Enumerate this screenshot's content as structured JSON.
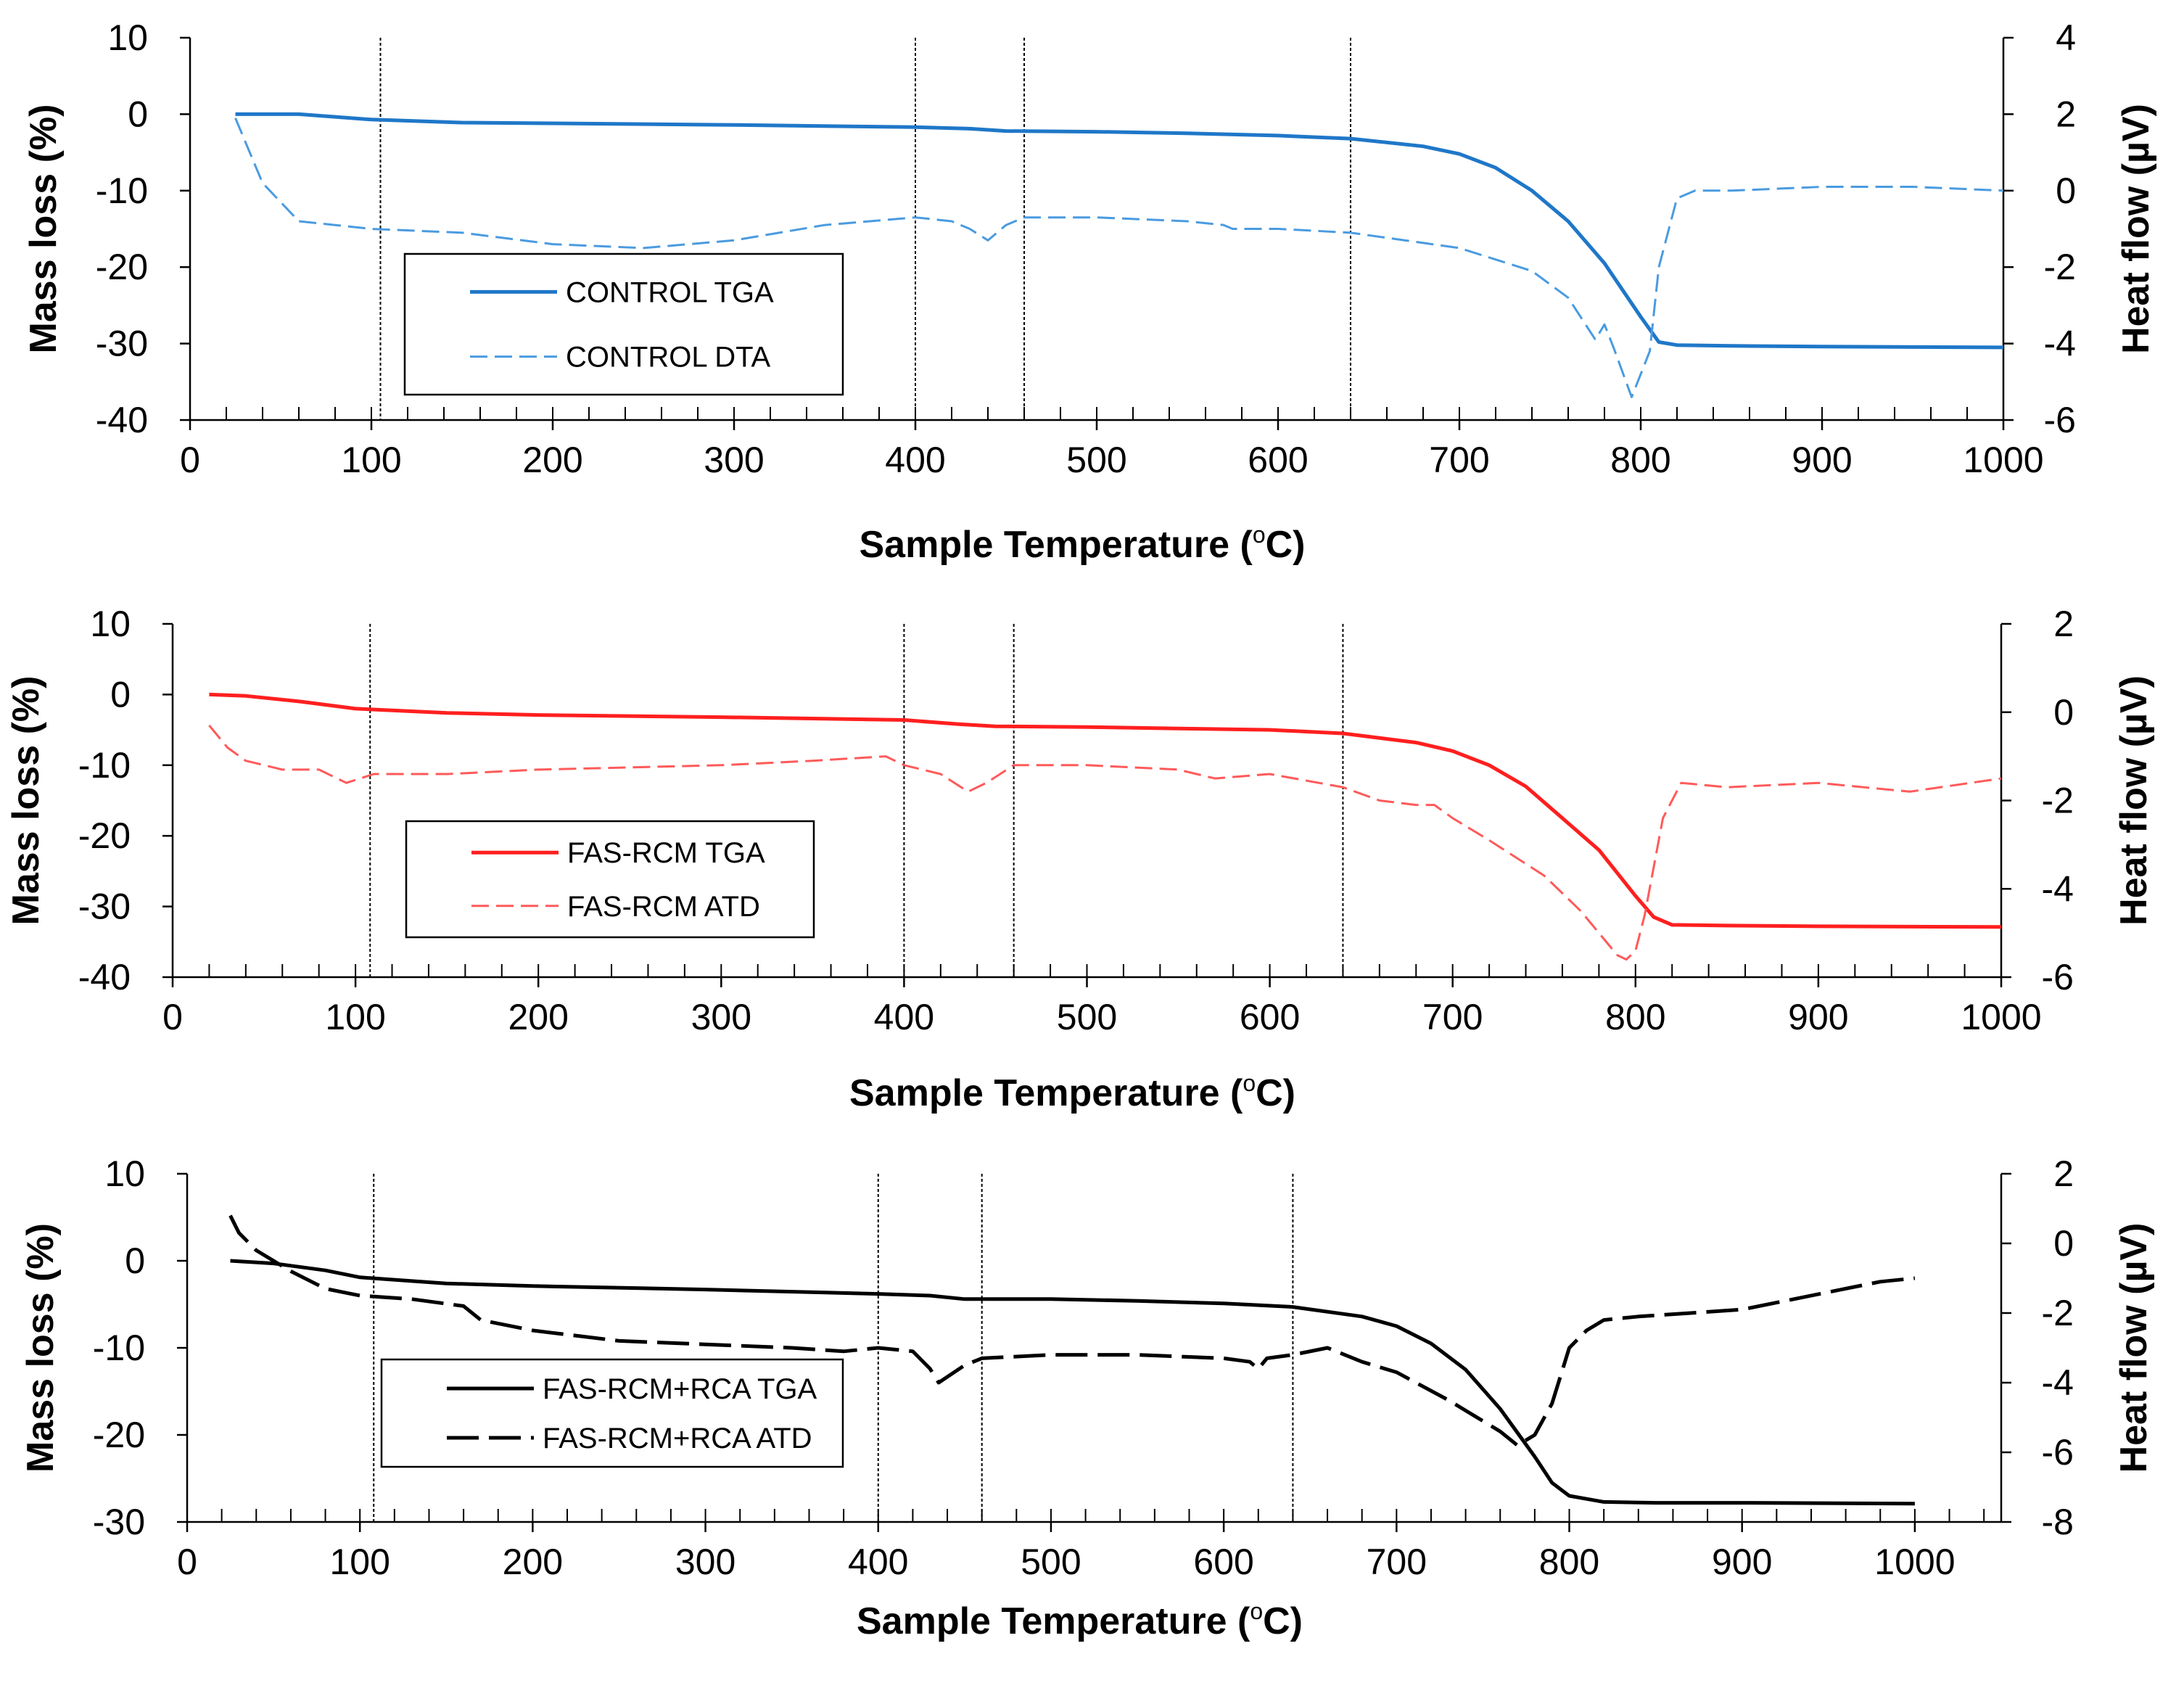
{
  "chart_data": [
    {
      "type": "line",
      "panel": "control",
      "xlabel": "Sample Temperature (",
      "xlabel_unit": "C)",
      "xlabel_sup": "o",
      "ylabel_left": "Mass loss (%)",
      "ylabel_right": "Heat flow (µV)",
      "xlim": [
        0,
        1000
      ],
      "ylim_left": [
        -40,
        10
      ],
      "ylim_right": [
        -6,
        4
      ],
      "x_ticks": [
        0,
        100,
        200,
        300,
        400,
        500,
        600,
        700,
        800,
        900,
        1000
      ],
      "y_ticks_left": [
        10,
        0,
        -10,
        -20,
        -30,
        -40
      ],
      "y_ticks_right": [
        4,
        2,
        0,
        -2,
        -4,
        -6
      ],
      "vlines": [
        105,
        400,
        460,
        640
      ],
      "series": [
        {
          "name": "CONTROL TGA",
          "axis": "left",
          "style": "solid",
          "color": "#1f77c8",
          "x": [
            25,
            60,
            100,
            150,
            200,
            300,
            400,
            430,
            450,
            500,
            550,
            600,
            640,
            680,
            700,
            720,
            740,
            760,
            780,
            800,
            810,
            820,
            850,
            900,
            1000
          ],
          "y": [
            0,
            0,
            -0.7,
            -1.1,
            -1.2,
            -1.4,
            -1.7,
            -1.9,
            -2.2,
            -2.3,
            -2.5,
            -2.8,
            -3.2,
            -4.2,
            -5.2,
            -7.0,
            -10.0,
            -14.0,
            -19.5,
            -26.5,
            -29.8,
            -30.2,
            -30.3,
            -30.4,
            -30.5
          ]
        },
        {
          "name": "CONTROL DTA",
          "axis": "right",
          "style": "dashed",
          "color": "#4a9be0",
          "x": [
            25,
            40,
            60,
            80,
            100,
            150,
            200,
            250,
            300,
            350,
            400,
            420,
            430,
            440,
            450,
            460,
            500,
            550,
            570,
            575,
            600,
            640,
            700,
            740,
            760,
            775,
            780,
            785,
            795,
            800,
            805,
            810,
            820,
            830,
            850,
            900,
            950,
            1000
          ],
          "y": [
            1.9,
            0.2,
            -0.8,
            -0.9,
            -1.0,
            -1.1,
            -1.4,
            -1.5,
            -1.3,
            -0.9,
            -0.7,
            -0.8,
            -1.0,
            -1.3,
            -0.9,
            -0.7,
            -0.7,
            -0.8,
            -0.9,
            -1.0,
            -1.0,
            -1.1,
            -1.5,
            -2.1,
            -2.8,
            -3.9,
            -3.5,
            -4.1,
            -5.4,
            -4.8,
            -4.2,
            -2.0,
            -0.2,
            0.0,
            0.0,
            0.1,
            0.1,
            0.0
          ]
        }
      ],
      "legend": [
        "CONTROL TGA",
        "CONTROL DTA"
      ]
    },
    {
      "type": "line",
      "panel": "fas-rcm",
      "xlabel": "Sample Temperature (",
      "xlabel_unit": "C)",
      "xlabel_sup": "o",
      "ylabel_left": "Mass loss (%)",
      "ylabel_right": "Heat flow (µV)",
      "xlim": [
        0,
        1000
      ],
      "ylim_left": [
        -40,
        10
      ],
      "ylim_right": [
        -6,
        2
      ],
      "x_ticks": [
        0,
        100,
        200,
        300,
        400,
        500,
        600,
        700,
        800,
        900,
        1000
      ],
      "y_ticks_left": [
        10,
        0,
        -10,
        -20,
        -30,
        -40
      ],
      "y_ticks_right": [
        2,
        0,
        -2,
        -4,
        -6
      ],
      "vlines": [
        108,
        400,
        460,
        640
      ],
      "series": [
        {
          "name": "FAS-RCM TGA",
          "axis": "left",
          "style": "solid",
          "color": "#ff1f1f",
          "x": [
            20,
            40,
            70,
            100,
            150,
            200,
            300,
            400,
            430,
            450,
            500,
            550,
            600,
            640,
            680,
            700,
            720,
            740,
            760,
            780,
            800,
            810,
            820,
            850,
            900,
            1000
          ],
          "y": [
            0,
            -0.2,
            -1.0,
            -2.0,
            -2.6,
            -2.9,
            -3.2,
            -3.6,
            -4.2,
            -4.5,
            -4.6,
            -4.8,
            -5.0,
            -5.5,
            -6.8,
            -8.0,
            -10.0,
            -13.0,
            -17.5,
            -22.0,
            -28.5,
            -31.5,
            -32.6,
            -32.7,
            -32.8,
            -32.9
          ]
        },
        {
          "name": "FAS-RCM ATD",
          "axis": "right",
          "style": "dashed",
          "color": "#ff5a5a",
          "x": [
            20,
            30,
            40,
            60,
            80,
            95,
            110,
            150,
            200,
            300,
            350,
            390,
            400,
            410,
            420,
            435,
            445,
            460,
            500,
            550,
            570,
            600,
            640,
            660,
            680,
            690,
            700,
            720,
            750,
            770,
            780,
            790,
            795,
            800,
            805,
            810,
            815,
            825,
            850,
            900,
            950,
            1000
          ],
          "y": [
            -0.3,
            -0.8,
            -1.1,
            -1.3,
            -1.3,
            -1.6,
            -1.4,
            -1.4,
            -1.3,
            -1.2,
            -1.1,
            -1.0,
            -1.2,
            -1.3,
            -1.4,
            -1.8,
            -1.6,
            -1.2,
            -1.2,
            -1.3,
            -1.5,
            -1.4,
            -1.7,
            -2.0,
            -2.1,
            -2.1,
            -2.4,
            -2.9,
            -3.7,
            -4.5,
            -5.0,
            -5.5,
            -5.6,
            -5.4,
            -4.6,
            -3.5,
            -2.4,
            -1.6,
            -1.7,
            -1.6,
            -1.8,
            -1.5
          ]
        }
      ],
      "legend": [
        "FAS-RCM TGA",
        "FAS-RCM ATD"
      ]
    },
    {
      "type": "line",
      "panel": "fas-rcm-rca",
      "xlabel": "Sample Temperature (",
      "xlabel_unit": "C)",
      "xlabel_sup": "o",
      "ylabel_left": "Mass loss (%)",
      "ylabel_right": "Heat flow (µV)",
      "xlim": [
        0,
        1050
      ],
      "ylim_left": [
        -30,
        10
      ],
      "ylim_right": [
        -8,
        2
      ],
      "x_ticks": [
        0,
        100,
        200,
        300,
        400,
        500,
        600,
        700,
        800,
        900,
        1000
      ],
      "y_ticks_left": [
        10,
        0,
        -10,
        -20,
        -30
      ],
      "y_ticks_right": [
        2,
        0,
        -2,
        -4,
        -6,
        -8
      ],
      "vlines": [
        108,
        400,
        460,
        640
      ],
      "series": [
        {
          "name": "FAS-RCM+RCA TGA",
          "axis": "left",
          "style": "solid",
          "color": "#000000",
          "x": [
            25,
            50,
            80,
            100,
            150,
            200,
            300,
            400,
            430,
            450,
            500,
            550,
            600,
            640,
            680,
            700,
            720,
            740,
            760,
            780,
            790,
            800,
            820,
            850,
            900,
            1000
          ],
          "y": [
            0,
            -0.3,
            -1.1,
            -1.9,
            -2.6,
            -2.9,
            -3.3,
            -3.8,
            -4.0,
            -4.4,
            -4.4,
            -4.6,
            -4.9,
            -5.3,
            -6.4,
            -7.5,
            -9.5,
            -12.5,
            -17.0,
            -22.5,
            -25.5,
            -27.0,
            -27.7,
            -27.8,
            -27.8,
            -27.9
          ]
        },
        {
          "name": "FAS-RCM+RCA ATD",
          "axis": "right",
          "style": "dashed",
          "color": "#000000",
          "x": [
            25,
            30,
            40,
            60,
            80,
            100,
            130,
            160,
            170,
            180,
            200,
            250,
            300,
            350,
            380,
            400,
            420,
            430,
            435,
            450,
            460,
            500,
            550,
            600,
            615,
            620,
            625,
            640,
            660,
            680,
            700,
            730,
            760,
            770,
            780,
            790,
            800,
            810,
            820,
            840,
            900,
            920,
            950,
            980,
            1000
          ],
          "y": [
            0.8,
            0.3,
            -0.2,
            -0.8,
            -1.3,
            -1.5,
            -1.6,
            -1.8,
            -2.2,
            -2.3,
            -2.5,
            -2.8,
            -2.9,
            -3.0,
            -3.1,
            -3.0,
            -3.1,
            -3.6,
            -4.0,
            -3.5,
            -3.3,
            -3.2,
            -3.2,
            -3.3,
            -3.4,
            -3.6,
            -3.3,
            -3.2,
            -3.0,
            -3.4,
            -3.7,
            -4.5,
            -5.4,
            -5.8,
            -5.5,
            -4.6,
            -3.0,
            -2.5,
            -2.2,
            -2.1,
            -1.9,
            -1.7,
            -1.4,
            -1.1,
            -1.0
          ]
        }
      ],
      "legend": [
        "FAS-RCM+RCA TGA",
        "FAS-RCM+RCA ATD"
      ]
    }
  ]
}
